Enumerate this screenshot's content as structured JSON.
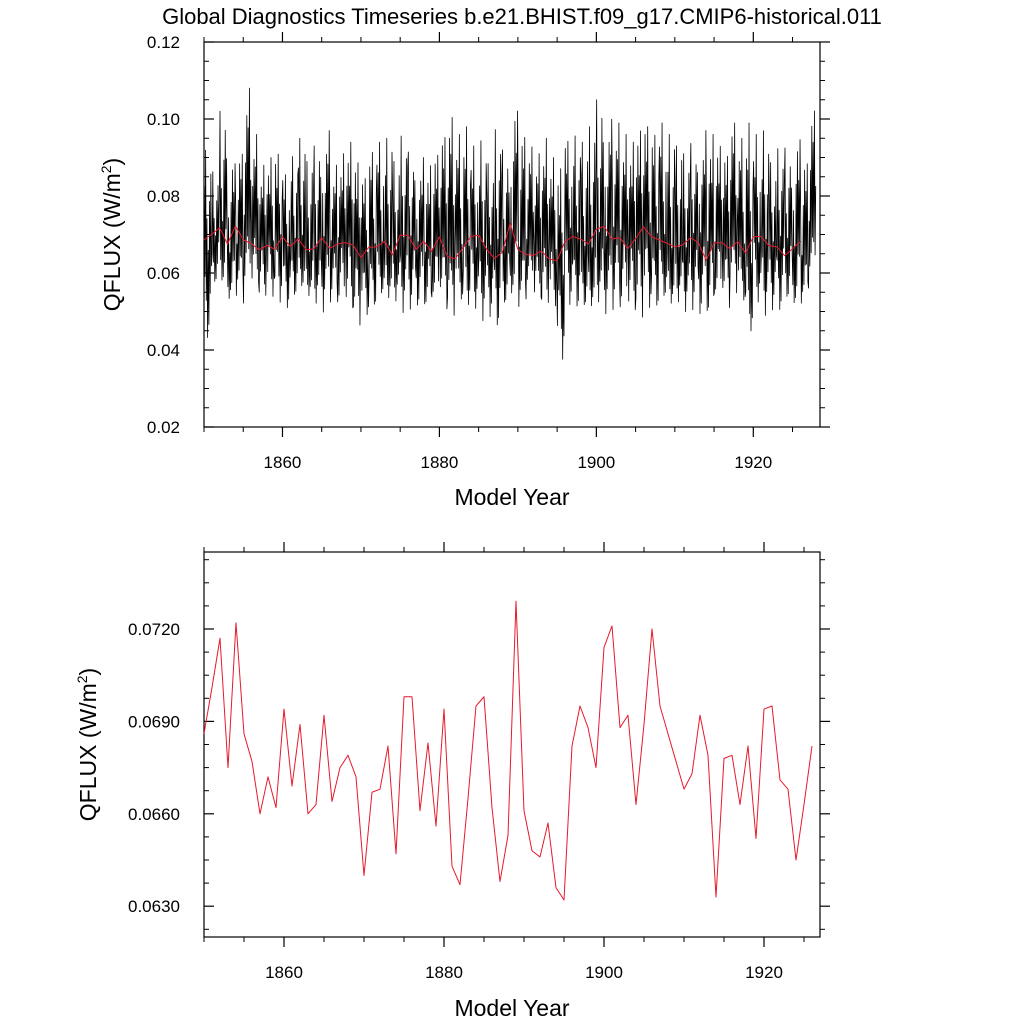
{
  "figure": {
    "title": "Global Diagnostics Timeseries b.e21.BHIST.f09_g17.CMIP6-historical.011"
  },
  "colors": {
    "monthly": "#000000",
    "annual": "#e8192c",
    "axes": "#000000"
  },
  "chart_data": [
    {
      "type": "line",
      "title": "",
      "xlabel": "Model Year",
      "ylabel_main": "QFLUX (W/m",
      "ylabel_sup": "2",
      "ylabel_tail": ")",
      "xlim": [
        1850,
        1928.5
      ],
      "ylim": [
        0.02,
        0.12
      ],
      "x_ticks": [
        1860,
        1880,
        1900,
        1920
      ],
      "x_tick_labels": [
        "1860",
        "1880",
        "1900",
        "1920"
      ],
      "y_ticks": [
        0.02,
        0.04,
        0.06,
        0.08,
        0.1,
        0.12
      ],
      "y_tick_labels": [
        "0.02",
        "0.04",
        "0.06",
        "0.08",
        "0.10",
        "0.12"
      ],
      "grid": false,
      "series": [
        {
          "style": "monthly",
          "x_start": 1850.04,
          "x_step": 0.0833333,
          "annual_peaks": [
            0.094,
            0.087,
            0.102,
            0.09,
            0.092,
            0.108,
            0.096,
            0.088,
            0.09,
            0.092,
            0.087,
            0.091,
            0.095,
            0.089,
            0.093,
            0.097,
            0.088,
            0.091,
            0.094,
            0.09,
            0.086,
            0.092,
            0.094,
            0.095,
            0.089,
            0.096,
            0.093,
            0.09,
            0.088,
            0.092,
            0.097,
            0.101,
            0.096,
            0.098,
            0.093,
            0.095,
            0.09,
            0.099,
            0.092,
            0.104,
            0.097,
            0.093,
            0.091,
            0.095,
            0.09,
            0.088,
            0.096,
            0.097,
            0.094,
            0.098,
            0.105,
            0.1,
            0.099,
            0.096,
            0.094,
            0.098,
            0.1,
            0.097,
            0.099,
            0.096,
            0.093,
            0.091,
            0.095,
            0.097,
            0.096,
            0.094,
            0.092,
            0.1,
            0.095,
            0.099,
            0.096,
            0.097,
            0.09,
            0.094,
            0.093,
            0.096,
            0.09,
            0.103
          ],
          "annual_troughs": [
            0.042,
            0.056,
            0.054,
            0.05,
            0.052,
            0.051,
            0.054,
            0.052,
            0.053,
            0.052,
            0.05,
            0.052,
            0.053,
            0.051,
            0.05,
            0.049,
            0.052,
            0.051,
            0.05,
            0.046,
            0.048,
            0.049,
            0.051,
            0.05,
            0.051,
            0.049,
            0.05,
            0.05,
            0.049,
            0.05,
            0.049,
            0.045,
            0.049,
            0.048,
            0.049,
            0.047,
            0.048,
            0.044,
            0.049,
            0.05,
            0.048,
            0.052,
            0.05,
            0.049,
            0.05,
            0.037,
            0.051,
            0.049,
            0.048,
            0.047,
            0.049,
            0.048,
            0.05,
            0.05,
            0.049,
            0.048,
            0.05,
            0.049,
            0.05,
            0.048,
            0.05,
            0.049,
            0.05,
            0.048,
            0.047,
            0.051,
            0.05,
            0.052,
            0.049,
            0.04,
            0.05,
            0.048,
            0.05,
            0.049,
            0.051,
            0.048,
            0.049,
            0.054
          ]
        },
        {
          "style": "annual",
          "x_start": 1850.0,
          "x_step": 1.0,
          "values": [
            0.0686,
            0.0701,
            0.0717,
            0.0675,
            0.0722,
            0.0686,
            0.0677,
            0.066,
            0.0672,
            0.0662,
            0.0694,
            0.0669,
            0.0689,
            0.066,
            0.0663,
            0.0692,
            0.0664,
            0.0675,
            0.0679,
            0.0672,
            0.064,
            0.0667,
            0.0668,
            0.0682,
            0.0647,
            0.0698,
            0.0698,
            0.0661,
            0.0683,
            0.0656,
            0.0694,
            0.0643,
            0.0637,
            0.0665,
            0.0695,
            0.0698,
            0.0662,
            0.0638,
            0.0653,
            0.0729,
            0.0661,
            0.0648,
            0.0646,
            0.0657,
            0.0636,
            0.0632,
            0.0682,
            0.0695,
            0.0688,
            0.0675,
            0.0714,
            0.0721,
            0.0688,
            0.0692,
            0.0663,
            0.0689,
            0.072,
            0.0695,
            0.0686,
            0.0677,
            0.0668,
            0.0673,
            0.0692,
            0.0679,
            0.0633,
            0.0678,
            0.0679,
            0.0663,
            0.0682,
            0.0652,
            0.0694,
            0.0695,
            0.0671,
            0.0668,
            0.0645,
            0.0663,
            0.0682
          ]
        }
      ]
    },
    {
      "type": "line",
      "title": "",
      "xlabel": "Model Year",
      "ylabel_main": "QFLUX (W/m",
      "ylabel_sup": "2",
      "ylabel_tail": ")",
      "xlim": [
        1850,
        1927
      ],
      "ylim": [
        0.062,
        0.0745
      ],
      "x_ticks": [
        1860,
        1880,
        1900,
        1920
      ],
      "x_tick_labels": [
        "1860",
        "1880",
        "1900",
        "1920"
      ],
      "y_ticks": [
        0.063,
        0.066,
        0.069,
        0.072
      ],
      "y_tick_labels": [
        "0.0630",
        "0.0660",
        "0.0690",
        "0.0720"
      ],
      "grid": false,
      "series": [
        {
          "style": "annual",
          "x_start": 1850.0,
          "x_step": 1.0,
          "values": [
            0.0686,
            0.0701,
            0.0717,
            0.0675,
            0.0722,
            0.0686,
            0.0677,
            0.066,
            0.0672,
            0.0662,
            0.0694,
            0.0669,
            0.0689,
            0.066,
            0.0663,
            0.0692,
            0.0664,
            0.0675,
            0.0679,
            0.0672,
            0.064,
            0.0667,
            0.0668,
            0.0682,
            0.0647,
            0.0698,
            0.0698,
            0.0661,
            0.0683,
            0.0656,
            0.0694,
            0.0643,
            0.0637,
            0.0665,
            0.0695,
            0.0698,
            0.0662,
            0.0638,
            0.0653,
            0.0729,
            0.0661,
            0.0648,
            0.0646,
            0.0657,
            0.0636,
            0.0632,
            0.0682,
            0.0695,
            0.0688,
            0.0675,
            0.0714,
            0.0721,
            0.0688,
            0.0692,
            0.0663,
            0.0689,
            0.072,
            0.0695,
            0.0686,
            0.0677,
            0.0668,
            0.0673,
            0.0692,
            0.0679,
            0.0633,
            0.0678,
            0.0679,
            0.0663,
            0.0682,
            0.0652,
            0.0694,
            0.0695,
            0.0671,
            0.0668,
            0.0645,
            0.0663,
            0.0682
          ]
        }
      ]
    }
  ]
}
